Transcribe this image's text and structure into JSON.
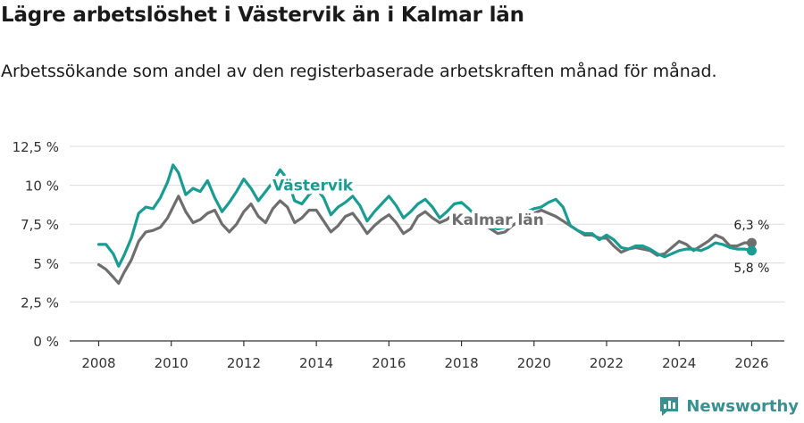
{
  "header": {
    "title": "Lägre arbetslöshet i Västervik än i Kalmar län",
    "subtitle": "Arbetssökande som andel av den registerbaserade arbetskraften månad för månad."
  },
  "brand": {
    "name": "Newsworthy",
    "icon": "newsworthy-logo-icon",
    "color": "#3a8f91"
  },
  "chart_data": {
    "type": "line",
    "title": "Lägre arbetslöshet i Västervik än i Kalmar län",
    "subtitle": "Arbetssökande som andel av den registerbaserade arbetskraften månad för månad.",
    "xlabel": "",
    "ylabel": "",
    "xlim": [
      2007.2,
      2026.9
    ],
    "ylim": [
      0,
      12.5
    ],
    "y_ticks": [
      0,
      2.5,
      5,
      7.5,
      10,
      12.5
    ],
    "y_tick_labels": [
      "0 %",
      "2,5 %",
      "5 %",
      "7,5 %",
      "10 %",
      "12,5 %"
    ],
    "x_ticks": [
      2008,
      2010,
      2012,
      2014,
      2016,
      2018,
      2020,
      2022,
      2024,
      2026
    ],
    "x_tick_labels": [
      "2008",
      "2010",
      "2012",
      "2014",
      "2016",
      "2018",
      "2020",
      "2022",
      "2024",
      "2026"
    ],
    "grid": true,
    "series": [
      {
        "name": "Västervik",
        "color": "#1a9c92",
        "label_position": [
          2013.9,
          10.0
        ],
        "end_label": "5,8 %",
        "x": [
          2008.0,
          2008.2,
          2008.4,
          2008.55,
          2008.7,
          2008.9,
          2009.1,
          2009.3,
          2009.5,
          2009.7,
          2009.9,
          2010.05,
          2010.2,
          2010.4,
          2010.6,
          2010.8,
          2011.0,
          2011.2,
          2011.4,
          2011.6,
          2011.8,
          2012.0,
          2012.2,
          2012.4,
          2012.6,
          2012.8,
          2013.0,
          2013.2,
          2013.4,
          2013.6,
          2013.8,
          2014.0,
          2014.2,
          2014.4,
          2014.6,
          2014.8,
          2015.0,
          2015.2,
          2015.4,
          2015.6,
          2015.8,
          2016.0,
          2016.2,
          2016.4,
          2016.6,
          2016.8,
          2017.0,
          2017.2,
          2017.4,
          2017.6,
          2017.8,
          2018.0,
          2018.2,
          2018.4,
          2018.6,
          2018.8,
          2019.0,
          2019.2,
          2019.4,
          2019.6,
          2019.8,
          2020.0,
          2020.2,
          2020.4,
          2020.6,
          2020.8,
          2021.0,
          2021.2,
          2021.4,
          2021.6,
          2021.8,
          2022.0,
          2022.2,
          2022.4,
          2022.6,
          2022.8,
          2023.0,
          2023.2,
          2023.4,
          2023.6,
          2023.8,
          2024.0,
          2024.2,
          2024.4,
          2024.6,
          2024.8,
          2025.0,
          2025.2,
          2025.4,
          2025.6,
          2025.8,
          2026.0
        ],
        "y": [
          6.2,
          6.2,
          5.6,
          4.8,
          5.5,
          6.6,
          8.2,
          8.6,
          8.5,
          9.2,
          10.2,
          11.3,
          10.8,
          9.4,
          9.8,
          9.6,
          10.3,
          9.2,
          8.3,
          8.9,
          9.6,
          10.4,
          9.8,
          9.0,
          9.6,
          10.2,
          11.0,
          10.4,
          9.0,
          8.8,
          9.4,
          9.8,
          9.2,
          8.1,
          8.6,
          8.9,
          9.3,
          8.7,
          7.7,
          8.3,
          8.8,
          9.3,
          8.7,
          7.9,
          8.3,
          8.8,
          9.1,
          8.6,
          7.9,
          8.3,
          8.8,
          8.9,
          8.5,
          8.0,
          7.6,
          7.3,
          7.2,
          7.3,
          7.7,
          8.0,
          8.3,
          8.5,
          8.6,
          8.9,
          9.1,
          8.6,
          7.4,
          7.1,
          6.9,
          6.9,
          6.5,
          6.8,
          6.5,
          6.0,
          5.9,
          6.1,
          6.1,
          5.9,
          5.6,
          5.4,
          5.6,
          5.8,
          5.9,
          5.9,
          5.8,
          6.0,
          6.3,
          6.2,
          6.0,
          5.9,
          5.9,
          5.8
        ]
      },
      {
        "name": "Kalmar län",
        "color": "#6e6e6e",
        "label_position": [
          2019.0,
          7.8
        ],
        "end_label": "6,3 %",
        "x": [
          2008.0,
          2008.2,
          2008.4,
          2008.55,
          2008.7,
          2008.9,
          2009.1,
          2009.3,
          2009.5,
          2009.7,
          2009.9,
          2010.05,
          2010.2,
          2010.4,
          2010.6,
          2010.8,
          2011.0,
          2011.2,
          2011.4,
          2011.6,
          2011.8,
          2012.0,
          2012.2,
          2012.4,
          2012.6,
          2012.8,
          2013.0,
          2013.2,
          2013.4,
          2013.6,
          2013.8,
          2014.0,
          2014.2,
          2014.4,
          2014.6,
          2014.8,
          2015.0,
          2015.2,
          2015.4,
          2015.6,
          2015.8,
          2016.0,
          2016.2,
          2016.4,
          2016.6,
          2016.8,
          2017.0,
          2017.2,
          2017.4,
          2017.6,
          2017.8,
          2018.0,
          2018.2,
          2018.4,
          2018.6,
          2018.8,
          2019.0,
          2019.2,
          2019.4,
          2019.6,
          2019.8,
          2020.0,
          2020.2,
          2020.4,
          2020.6,
          2020.8,
          2021.0,
          2021.2,
          2021.4,
          2021.6,
          2021.8,
          2022.0,
          2022.2,
          2022.4,
          2022.6,
          2022.8,
          2023.0,
          2023.2,
          2023.4,
          2023.6,
          2023.8,
          2024.0,
          2024.2,
          2024.4,
          2024.6,
          2024.8,
          2025.0,
          2025.2,
          2025.4,
          2025.6,
          2025.8,
          2026.0
        ],
        "y": [
          4.9,
          4.6,
          4.1,
          3.7,
          4.4,
          5.2,
          6.4,
          7.0,
          7.1,
          7.3,
          7.9,
          8.6,
          9.3,
          8.3,
          7.6,
          7.8,
          8.2,
          8.4,
          7.5,
          7.0,
          7.5,
          8.3,
          8.8,
          8.0,
          7.6,
          8.5,
          9.0,
          8.6,
          7.6,
          7.9,
          8.4,
          8.4,
          7.7,
          7.0,
          7.4,
          8.0,
          8.2,
          7.6,
          6.9,
          7.4,
          7.8,
          8.1,
          7.6,
          6.9,
          7.2,
          8.0,
          8.3,
          7.9,
          7.6,
          7.8,
          8.2,
          8.3,
          7.8,
          7.4,
          7.5,
          7.2,
          6.9,
          7.0,
          7.4,
          7.7,
          8.0,
          8.2,
          8.4,
          8.2,
          8.0,
          7.7,
          7.4,
          7.1,
          6.8,
          6.8,
          6.6,
          6.6,
          6.1,
          5.7,
          5.9,
          6.0,
          5.9,
          5.8,
          5.5,
          5.6,
          6.0,
          6.4,
          6.2,
          5.8,
          6.1,
          6.4,
          6.8,
          6.6,
          6.1,
          6.1,
          6.3,
          6.3
        ]
      }
    ]
  }
}
